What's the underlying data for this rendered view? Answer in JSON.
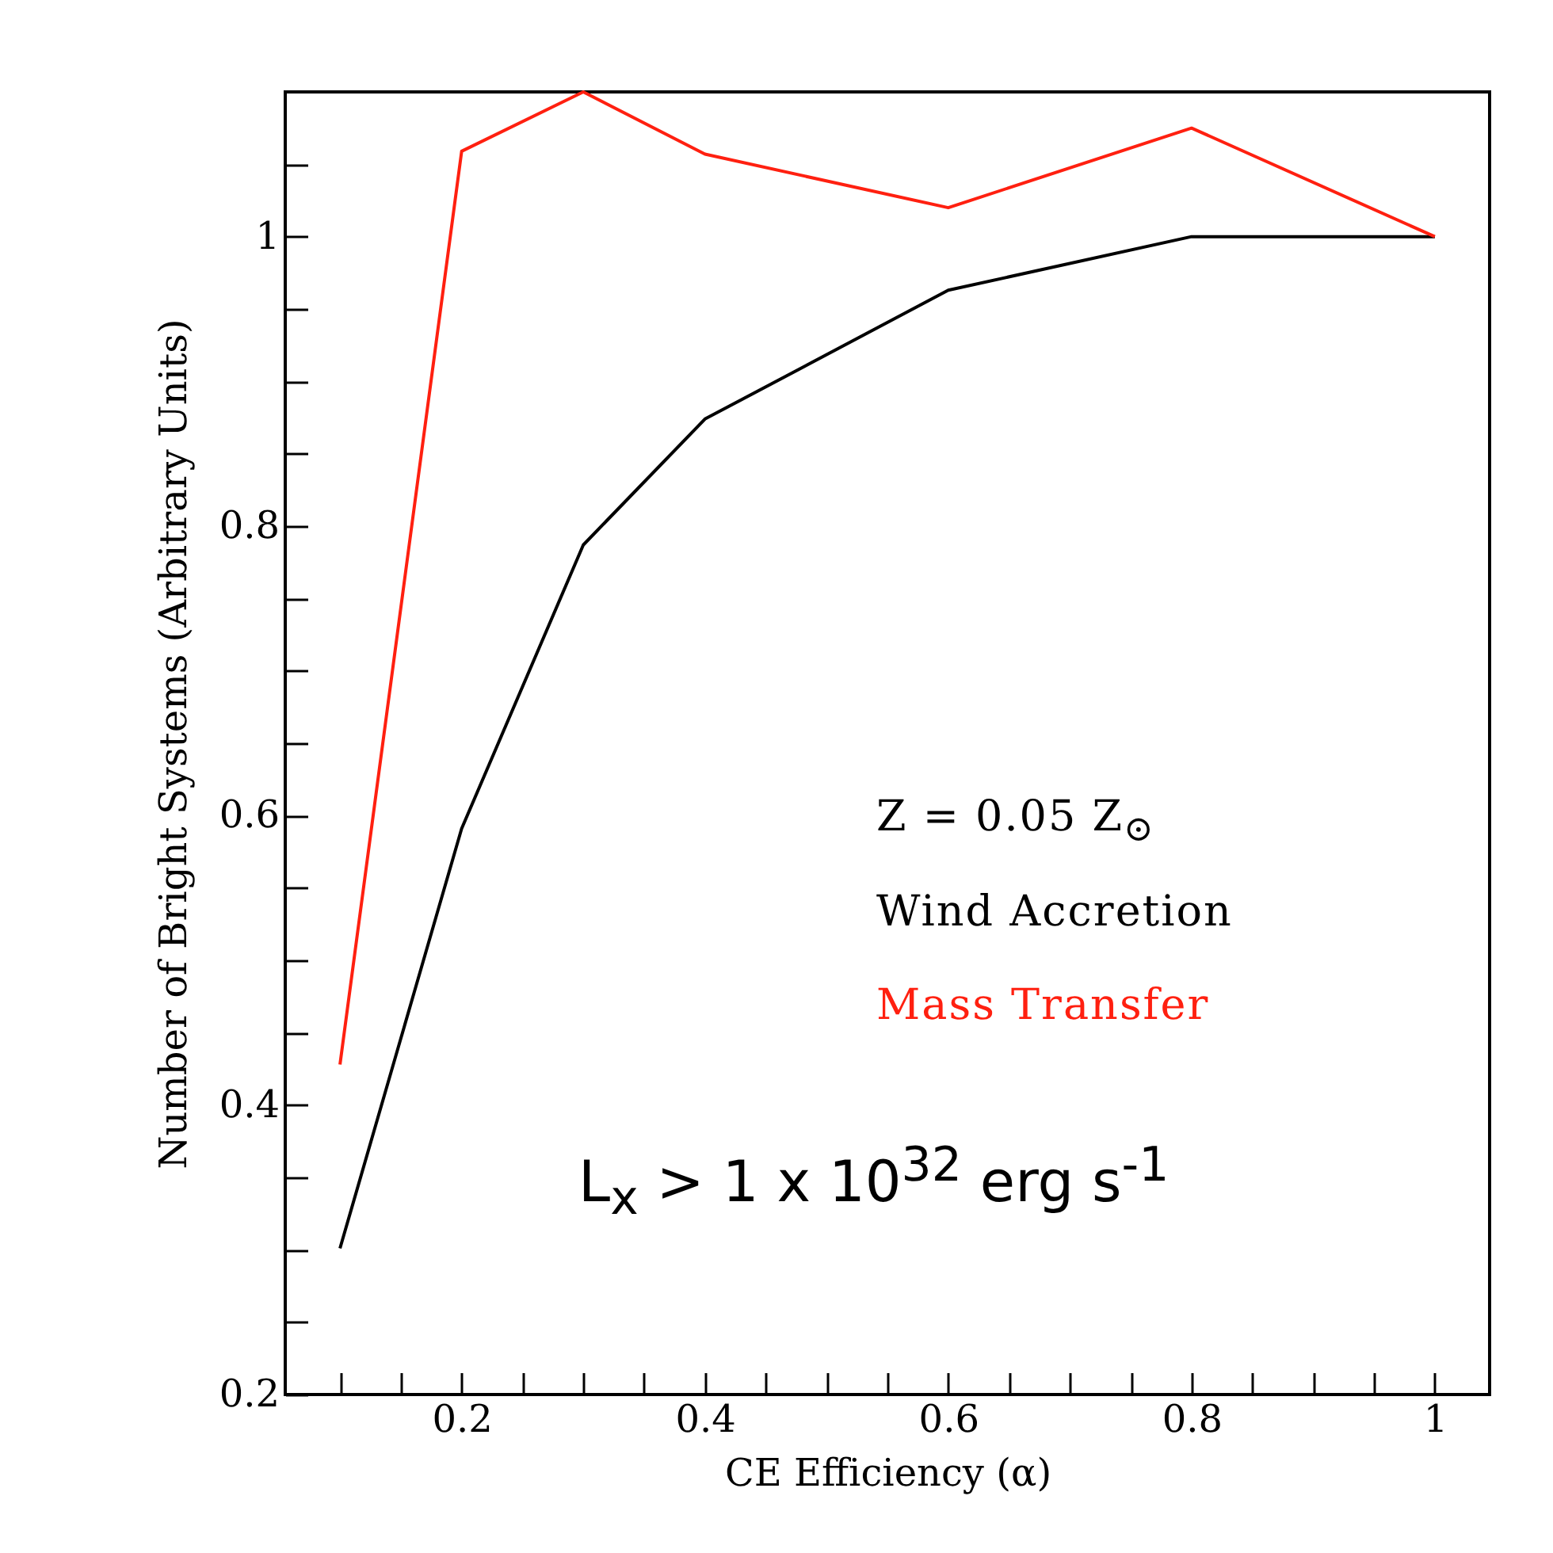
{
  "chart_data": {
    "type": "line",
    "xlabel": "CE Efficiency (α)",
    "ylabel": "Number of Bright Systems (Arbitrary Units)",
    "x": [
      0.1,
      0.2,
      0.3,
      0.4,
      0.6,
      0.8,
      1
    ],
    "series": [
      {
        "name": "Wind Accretion",
        "color": "#000000",
        "values": [
          0.301,
          0.591,
          0.787,
          0.874,
          0.963,
          1,
          1
        ]
      },
      {
        "name": "Mass Transfer",
        "color": "#ff2010",
        "values": [
          0.428,
          1.059,
          1.1,
          1.057,
          1.02,
          1.075,
          1
        ]
      }
    ],
    "annotations": [
      "Z = 0.05 Z$_{⊙}$",
      "L$_{x}$ > 1 x 10$^{32}$ erg s$^{-1}$"
    ],
    "xlim": [
      0.055,
      1.045
    ],
    "ylim": [
      0.2,
      1.1
    ],
    "xticks": [
      {
        "value": 0.1,
        "label": null
      },
      {
        "value": 0.15,
        "label": null
      },
      0.2,
      {
        "value": 0.25,
        "label": null
      },
      {
        "value": 0.3,
        "label": null
      },
      {
        "value": 0.35,
        "label": null
      },
      0.4,
      {
        "value": 0.45,
        "label": null
      },
      {
        "value": 0.5,
        "label": null
      },
      {
        "value": 0.55,
        "label": null
      },
      0.6,
      {
        "value": 0.65,
        "label": null
      },
      {
        "value": 0.7,
        "label": null
      },
      {
        "value": 0.75,
        "label": null
      },
      0.8,
      {
        "value": 0.85,
        "label": null
      },
      {
        "value": 0.9,
        "label": null
      },
      {
        "value": 0.95,
        "label": null
      },
      1
    ],
    "yticks": [
      0.2,
      {
        "value": 0.25,
        "label": null
      },
      {
        "value": 0.3,
        "label": null
      },
      {
        "value": 0.35,
        "label": null
      },
      0.4,
      {
        "value": 0.45,
        "label": null
      },
      {
        "value": 0.5,
        "label": null
      },
      {
        "value": 0.55,
        "label": null
      },
      0.6,
      {
        "value": 0.65,
        "label": null
      },
      {
        "value": 0.7,
        "label": null
      },
      {
        "value": 0.75,
        "label": null
      },
      0.8,
      {
        "value": 0.85,
        "label": null
      },
      {
        "value": 0.9,
        "label": null
      },
      {
        "value": 0.95,
        "label": null
      },
      1,
      {
        "value": 1.05,
        "label": null
      }
    ],
    "grid": false,
    "line_style": "solid",
    "marker": "none"
  }
}
